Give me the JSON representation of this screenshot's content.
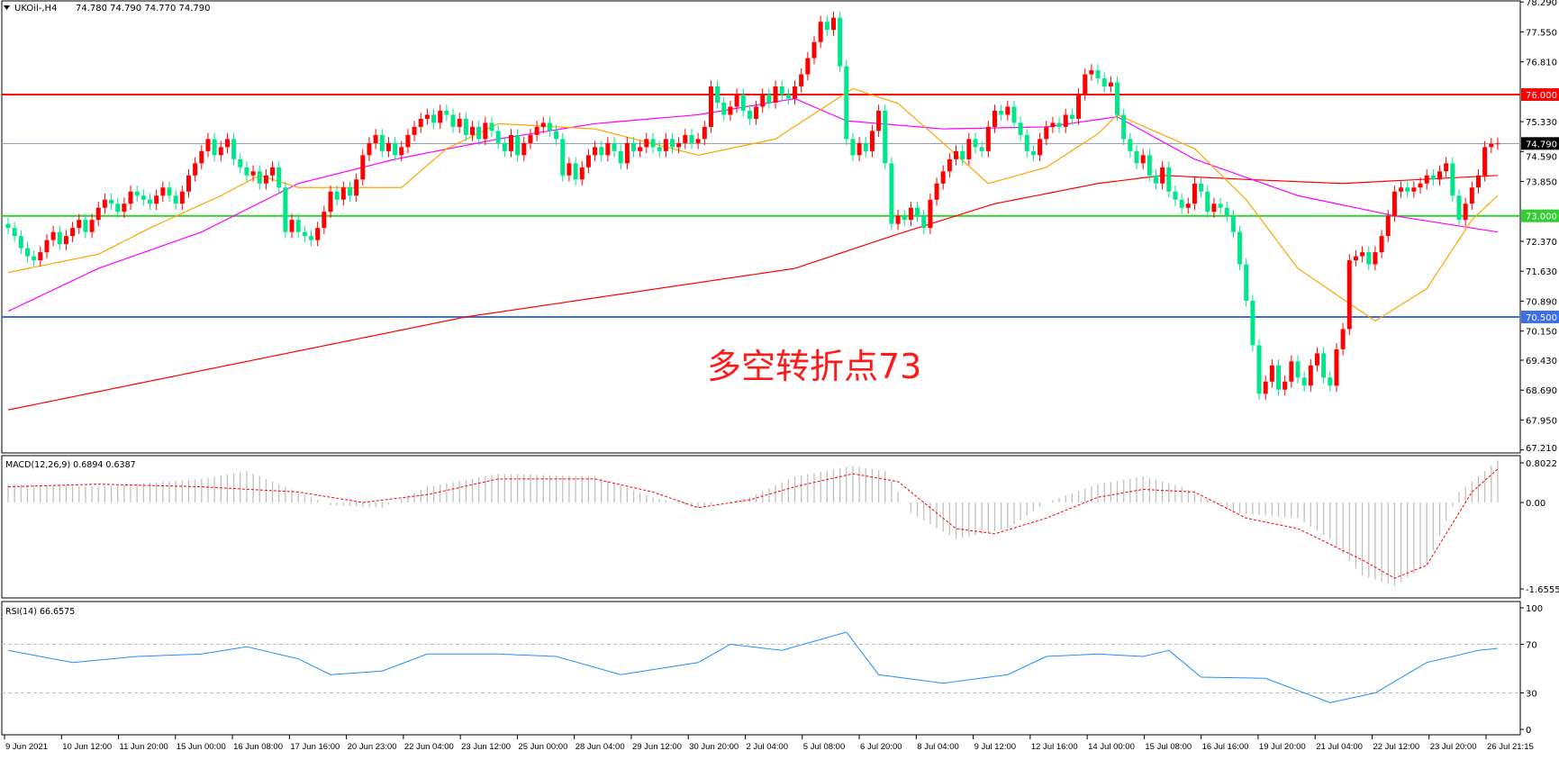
{
  "header": {
    "symbol": "UKOil-,H4",
    "ohlc": "74.780 74.790 74.770 74.790"
  },
  "annotation": "多空转折点73",
  "colors": {
    "up": "#ff0000",
    "down": "#00e68a",
    "ma_fast": "#ffa500",
    "ma_mid": "#ff00ff",
    "ma_slow": "#ff0000",
    "level_76": "#ff0000",
    "level_73": "#33cc33",
    "level_70_5": "#3b6ee8",
    "price_line": "#8899aa",
    "macd_hist": "#c0c0c0",
    "macd_signal": "#ff0000",
    "rsi": "#1e90ff"
  },
  "chart_data": [
    {
      "type": "candlestick",
      "title": "UKOil-,H4",
      "ylim": [
        67.21,
        78.29
      ],
      "y_ticks": [
        "78.290",
        "77.550",
        "76.810",
        "75.330",
        "74.590",
        "73.850",
        "72.370",
        "71.630",
        "70.890",
        "70.150",
        "69.430",
        "68.690",
        "67.950",
        "67.210"
      ],
      "x_tick_labels": [
        "9 Jun 2021",
        "10 Jun 12:00",
        "11 Jun 20:00",
        "15 Jun 00:00",
        "16 Jun 08:00",
        "17 Jun 16:00",
        "20 Jun 23:00",
        "22 Jun 04:00",
        "23 Jun 12:00",
        "25 Jun 00:00",
        "28 Jun 04:00",
        "29 Jun 12:00",
        "30 Jun 20:00",
        "2 Jul 04:00",
        "5 Jul 08:00",
        "6 Jul 20:00",
        "8 Jul 04:00",
        "9 Jul 12:00",
        "12 Jul 16:00",
        "14 Jul 00:00",
        "15 Jul 08:00",
        "16 Jul 16:00",
        "19 Jul 20:00",
        "21 Jul 04:00",
        "22 Jul 12:00",
        "23 Jul 20:00",
        "26 Jul 21:15"
      ],
      "closes": [
        72.7,
        72.5,
        72.2,
        72.0,
        71.9,
        72.1,
        72.4,
        72.6,
        72.3,
        72.5,
        72.7,
        72.9,
        72.6,
        72.9,
        73.2,
        73.4,
        73.3,
        73.1,
        73.3,
        73.6,
        73.5,
        73.4,
        73.3,
        73.5,
        73.7,
        73.5,
        73.3,
        73.6,
        74.0,
        74.3,
        74.6,
        74.9,
        74.5,
        74.7,
        74.9,
        74.4,
        74.2,
        74.0,
        74.1,
        73.8,
        74.0,
        74.2,
        73.7,
        72.6,
        72.9,
        72.6,
        72.5,
        72.4,
        72.7,
        73.1,
        73.6,
        73.4,
        73.7,
        73.5,
        73.9,
        74.5,
        74.8,
        75.0,
        74.6,
        74.8,
        74.5,
        74.7,
        75.0,
        75.2,
        75.4,
        75.5,
        75.3,
        75.6,
        75.5,
        75.2,
        75.4,
        75.0,
        75.2,
        74.9,
        75.3,
        75.1,
        74.8,
        74.6,
        75.0,
        74.5,
        74.8,
        75.0,
        75.2,
        75.3,
        75.1,
        74.9,
        74.0,
        74.3,
        73.9,
        74.2,
        74.5,
        74.7,
        74.5,
        74.8,
        74.6,
        74.3,
        74.8,
        74.6,
        74.7,
        74.9,
        74.7,
        74.6,
        74.9,
        74.7,
        74.8,
        75.0,
        74.8,
        74.9,
        75.2,
        76.2,
        75.8,
        75.5,
        75.7,
        76.0,
        75.6,
        75.4,
        75.7,
        76.0,
        75.8,
        76.2,
        76.0,
        75.9,
        76.2,
        76.5,
        76.9,
        77.3,
        77.8,
        77.6,
        77.9,
        76.7,
        74.9,
        74.5,
        74.8,
        74.6,
        75.1,
        75.6,
        74.3,
        72.8,
        73.0,
        72.9,
        73.2,
        73.0,
        72.7,
        73.4,
        73.8,
        74.1,
        74.4,
        74.6,
        74.4,
        74.9,
        74.7,
        74.6,
        75.2,
        75.6,
        75.5,
        75.7,
        75.3,
        75.0,
        74.6,
        74.5,
        74.9,
        75.2,
        75.3,
        75.2,
        75.5,
        75.4,
        76.0,
        76.5,
        76.6,
        76.4,
        76.2,
        76.3,
        75.5,
        74.9,
        74.6,
        74.3,
        74.5,
        74.0,
        73.8,
        74.2,
        73.6,
        73.4,
        73.2,
        73.3,
        73.8,
        73.6,
        73.1,
        73.3,
        73.2,
        73.0,
        72.6,
        71.8,
        70.9,
        69.8,
        68.6,
        68.9,
        69.3,
        68.7,
        68.9,
        69.4,
        69.0,
        68.8,
        69.3,
        69.6,
        69.0,
        68.8,
        69.7,
        70.2,
        71.9,
        72.0,
        72.1,
        71.8,
        72.1,
        72.5,
        73.0,
        73.6,
        73.7,
        73.6,
        73.7,
        73.8,
        74.0,
        73.9,
        74.1,
        74.3,
        73.5,
        72.9,
        73.3,
        73.7,
        74.0,
        74.7,
        74.78,
        74.79
      ],
      "levels": [
        {
          "price": 76.0,
          "label": "76.000"
        },
        {
          "price": 73.0,
          "label": "73.000"
        },
        {
          "price": 70.5,
          "label": "70.500"
        }
      ],
      "current_price": {
        "price": 74.79,
        "label": "74.790"
      },
      "moving_averages": {
        "fast": [
          [
            0,
            71.6
          ],
          [
            14,
            72.05
          ],
          [
            22,
            72.7
          ],
          [
            33,
            73.5
          ],
          [
            39,
            74.0
          ],
          [
            45,
            73.7
          ],
          [
            53,
            73.7
          ],
          [
            61,
            73.7
          ],
          [
            68,
            74.66
          ],
          [
            76,
            75.28
          ],
          [
            91,
            75.15
          ],
          [
            107,
            74.5
          ],
          [
            119,
            74.9
          ],
          [
            131,
            76.15
          ],
          [
            138,
            75.78
          ],
          [
            145,
            74.8
          ],
          [
            152,
            73.8
          ],
          [
            161,
            74.2
          ],
          [
            169,
            75.03
          ],
          [
            172,
            75.5
          ],
          [
            184,
            74.66
          ],
          [
            192,
            73.4
          ],
          [
            200,
            71.7
          ],
          [
            212,
            70.4
          ],
          [
            220,
            71.2
          ],
          [
            227,
            72.9
          ],
          [
            231,
            73.5
          ]
        ],
        "mid": [
          [
            0,
            70.64
          ],
          [
            14,
            71.7
          ],
          [
            30,
            72.6
          ],
          [
            45,
            73.8
          ],
          [
            60,
            74.4
          ],
          [
            76,
            74.9
          ],
          [
            91,
            75.28
          ],
          [
            107,
            75.5
          ],
          [
            122,
            75.9
          ],
          [
            130,
            75.35
          ],
          [
            145,
            75.15
          ],
          [
            161,
            75.2
          ],
          [
            172,
            75.45
          ],
          [
            184,
            74.4
          ],
          [
            200,
            73.5
          ],
          [
            215,
            73.0
          ],
          [
            231,
            72.6
          ]
        ],
        "slow": [
          [
            0,
            68.2
          ],
          [
            71,
            70.5
          ],
          [
            122,
            71.7
          ],
          [
            138,
            72.55
          ],
          [
            153,
            73.3
          ],
          [
            169,
            73.8
          ],
          [
            179,
            74.0
          ],
          [
            192,
            73.9
          ],
          [
            207,
            73.8
          ],
          [
            231,
            74.0
          ]
        ]
      }
    },
    {
      "type": "bar+line",
      "title": "MACD(12,26,9) 0.6894 0.6387",
      "ylim": [
        -1.6555,
        0.8022
      ],
      "y_ticks": [
        "0.8022",
        "0.00",
        "-1.6555"
      ],
      "histogram": [
        [
          0,
          0.35
        ],
        [
          14,
          0.3
        ],
        [
          30,
          0.45
        ],
        [
          37,
          0.6
        ],
        [
          45,
          0.2
        ],
        [
          50,
          -0.05
        ],
        [
          58,
          -0.1
        ],
        [
          65,
          0.3
        ],
        [
          76,
          0.55
        ],
        [
          91,
          0.5
        ],
        [
          100,
          0.1
        ],
        [
          107,
          -0.1
        ],
        [
          115,
          0.1
        ],
        [
          122,
          0.5
        ],
        [
          131,
          0.7
        ],
        [
          136,
          0.6
        ],
        [
          140,
          -0.2
        ],
        [
          147,
          -0.7
        ],
        [
          155,
          -0.5
        ],
        [
          161,
          0.0
        ],
        [
          169,
          0.35
        ],
        [
          176,
          0.5
        ],
        [
          182,
          0.3
        ],
        [
          190,
          -0.2
        ],
        [
          200,
          -0.3
        ],
        [
          205,
          -0.7
        ],
        [
          210,
          -1.4
        ],
        [
          215,
          -1.6
        ],
        [
          220,
          -1.2
        ],
        [
          225,
          0.2
        ],
        [
          231,
          0.8
        ]
      ],
      "signal": [
        [
          0,
          0.3
        ],
        [
          14,
          0.35
        ],
        [
          30,
          0.3
        ],
        [
          45,
          0.2
        ],
        [
          55,
          0.0
        ],
        [
          65,
          0.15
        ],
        [
          76,
          0.45
        ],
        [
          91,
          0.45
        ],
        [
          100,
          0.2
        ],
        [
          107,
          -0.1
        ],
        [
          115,
          0.05
        ],
        [
          122,
          0.3
        ],
        [
          131,
          0.55
        ],
        [
          138,
          0.4
        ],
        [
          147,
          -0.5
        ],
        [
          153,
          -0.6
        ],
        [
          161,
          -0.3
        ],
        [
          169,
          0.1
        ],
        [
          176,
          0.25
        ],
        [
          184,
          0.2
        ],
        [
          192,
          -0.3
        ],
        [
          200,
          -0.5
        ],
        [
          210,
          -1.1
        ],
        [
          215,
          -1.45
        ],
        [
          220,
          -1.2
        ],
        [
          227,
          0.2
        ],
        [
          231,
          0.64
        ]
      ]
    },
    {
      "type": "line",
      "title": "RSI(14) 66.6575",
      "ylim": [
        0,
        100
      ],
      "y_ticks": [
        "100",
        "70",
        "30",
        "0"
      ],
      "levels": [
        70,
        30
      ],
      "values": [
        [
          0,
          65
        ],
        [
          10,
          55
        ],
        [
          20,
          60
        ],
        [
          30,
          62
        ],
        [
          37,
          68
        ],
        [
          45,
          58
        ],
        [
          50,
          45
        ],
        [
          58,
          48
        ],
        [
          65,
          62
        ],
        [
          76,
          62
        ],
        [
          85,
          60
        ],
        [
          95,
          45
        ],
        [
          107,
          55
        ],
        [
          112,
          70
        ],
        [
          120,
          65
        ],
        [
          130,
          80
        ],
        [
          135,
          45
        ],
        [
          145,
          38
        ],
        [
          155,
          45
        ],
        [
          161,
          60
        ],
        [
          169,
          62
        ],
        [
          176,
          60
        ],
        [
          180,
          65
        ],
        [
          185,
          43
        ],
        [
          195,
          42
        ],
        [
          205,
          22
        ],
        [
          212,
          30
        ],
        [
          220,
          55
        ],
        [
          228,
          65
        ],
        [
          231,
          66.66
        ]
      ]
    }
  ]
}
